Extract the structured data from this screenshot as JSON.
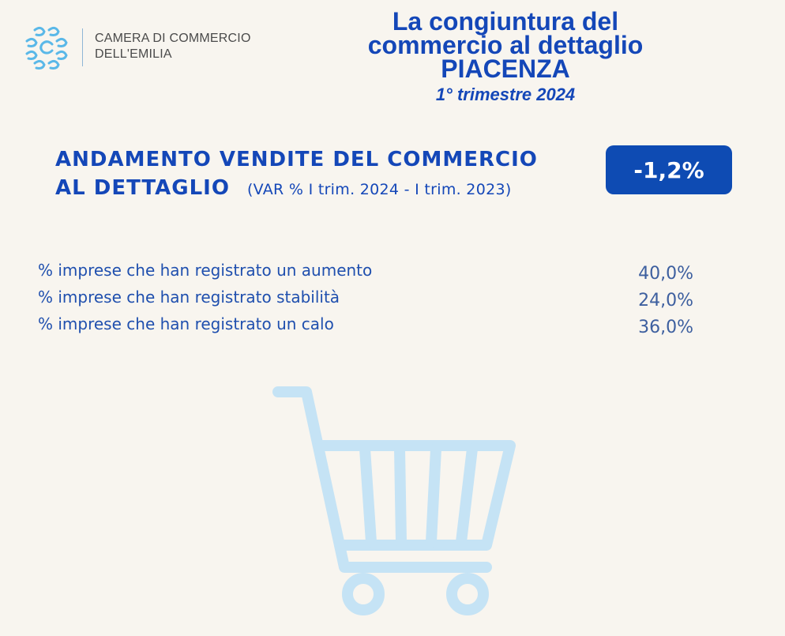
{
  "logo": {
    "icon": "camera-commercio-logo-icon",
    "line1": "CAMERA DI COMMERCIO",
    "line2": "DELL'EMILIA",
    "color": "#5ab8e8"
  },
  "header": {
    "title_line1": "La congiuntura del",
    "title_line2": "commercio al dettaglio",
    "title_line3": "PIACENZA",
    "subtitle": "1° trimestre 2024"
  },
  "section": {
    "title_line1": "ANDAMENTO VENDITE DEL COMMERCIO",
    "title_line2": "AL DETTAGLIO",
    "note": "(VAR % I trim. 2024 - I trim. 2023)",
    "value": "-1,2%",
    "badge_color": "#0e4bb3"
  },
  "stats": [
    {
      "label": "% imprese che han registrato un aumento",
      "value": "40,0%"
    },
    {
      "label": "% imprese che han registrato stabilità",
      "value": "24,0%"
    },
    {
      "label": "% imprese che han registrato un calo",
      "value": "36,0%"
    }
  ],
  "illustration": {
    "icon": "shopping-cart-icon",
    "color": "#c5e3f5"
  }
}
